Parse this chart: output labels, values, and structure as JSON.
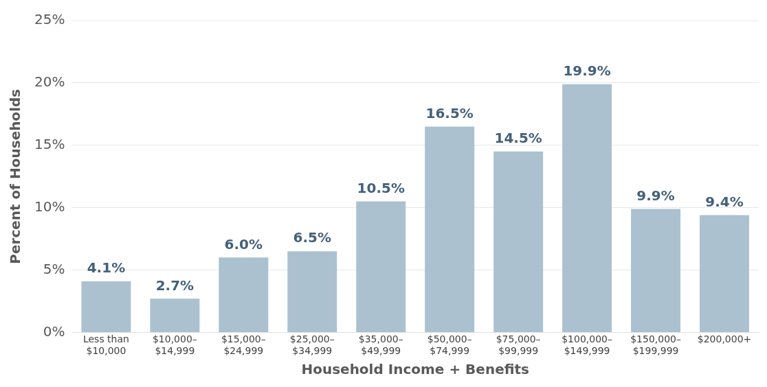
{
  "chart_data": {
    "type": "bar",
    "xlabel": "Household Income + Benefits",
    "ylabel": "Percent of Households",
    "categories": [
      "Less than\n$10,000",
      "$10,000–\n$14,999",
      "$15,000–\n$24,999",
      "$25,000–\n$34,999",
      "$35,000–\n$49,999",
      "$50,000–\n$74,999",
      "$75,000–\n$99,999",
      "$100,000–\n$149,999",
      "$150,000–\n$199,999",
      "$200,000+"
    ],
    "values": [
      4.1,
      2.7,
      6.0,
      6.5,
      10.5,
      16.5,
      14.5,
      19.9,
      9.9,
      9.4
    ],
    "value_labels": [
      "4.1%",
      "2.7%",
      "6.0%",
      "6.5%",
      "10.5%",
      "16.5%",
      "14.5%",
      "19.9%",
      "9.9%",
      "9.4%"
    ],
    "color": "#abc1d0",
    "ylim": [
      0,
      25
    ],
    "yticks": [
      {
        "value": 0,
        "label": "0%"
      },
      {
        "value": 5,
        "label": "5%"
      },
      {
        "value": 10,
        "label": "10%"
      },
      {
        "value": 15,
        "label": "15%"
      },
      {
        "value": 20,
        "label": "20%"
      },
      {
        "value": 25,
        "label": "25%"
      }
    ],
    "grid": "y",
    "legend": false
  }
}
